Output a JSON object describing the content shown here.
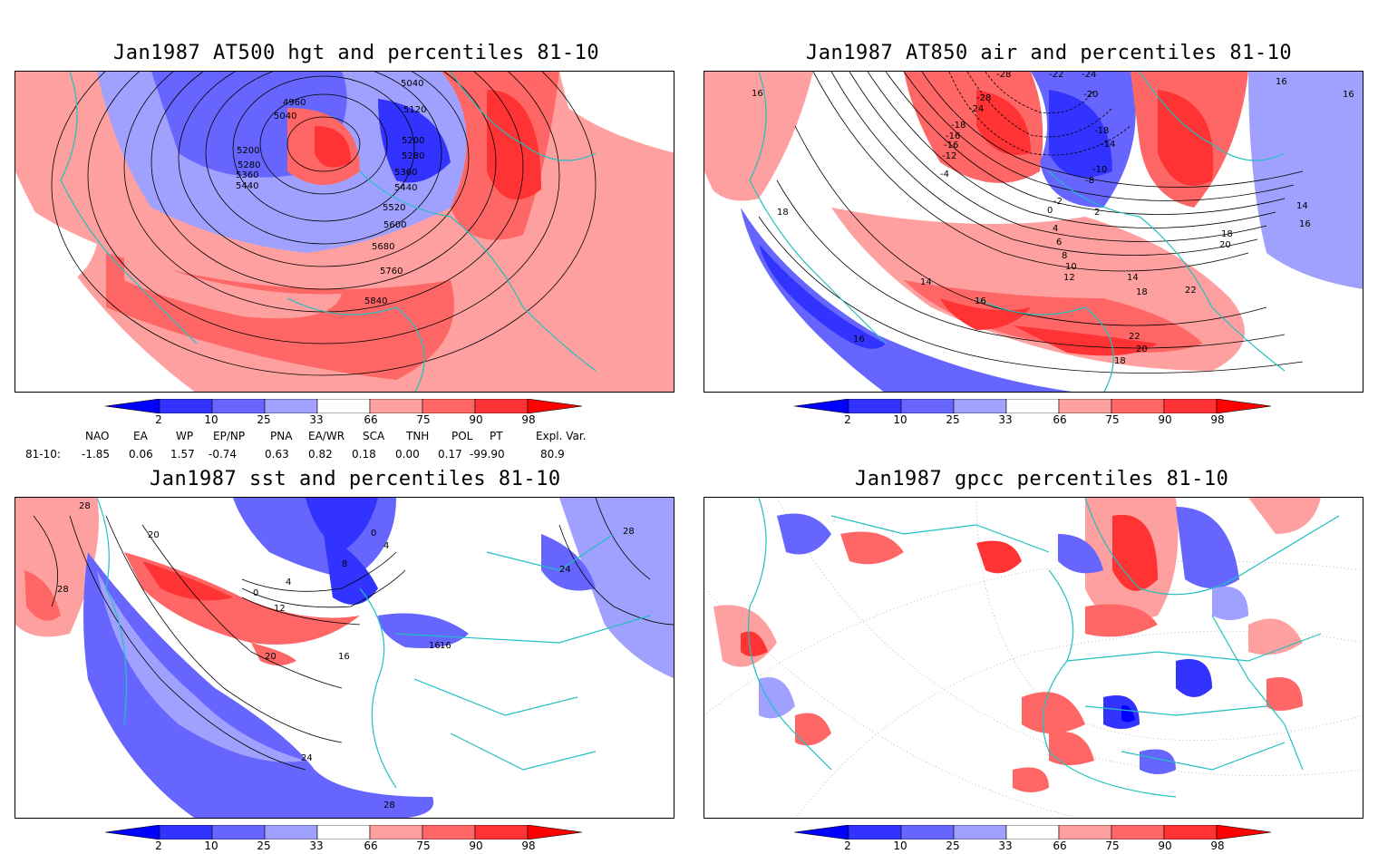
{
  "panels": [
    {
      "title": "Jan1987 AT500 hgt and percentiles 81-10",
      "contour_labels": [
        "4960",
        "5040",
        "5040",
        "5120",
        "5200",
        "5200",
        "5280",
        "5280",
        "5360",
        "5360",
        "5440",
        "5440",
        "5520",
        "5600",
        "5680",
        "5760",
        "5840"
      ]
    },
    {
      "title": "Jan1987 AT850 air and percentiles 81-10",
      "contour_labels": [
        "16",
        "16",
        "16",
        "18",
        "14",
        "16",
        "-28",
        "-22",
        "-24",
        "-20",
        "-28",
        "-24",
        "-18",
        "-16",
        "-18",
        "-14",
        "-16",
        "-12",
        "-10",
        "-8",
        "-4",
        "-2",
        "0",
        "2",
        "4",
        "6",
        "8",
        "10",
        "12",
        "14",
        "16",
        "18",
        "20",
        "22",
        "22",
        "20",
        "18",
        "14",
        "18",
        "16"
      ]
    },
    {
      "title": "Jan1987 sst and percentiles 81-10",
      "contour_labels": [
        "28",
        "20",
        "28",
        "0",
        "4",
        "8",
        "0",
        "4",
        "12",
        "20",
        "16",
        "24",
        "16",
        "16",
        "28",
        "24",
        "28"
      ]
    },
    {
      "title": "Jan1987 gpcc percentiles 81-10",
      "contour_labels": []
    }
  ],
  "colorbar": {
    "labels": [
      "2",
      "10",
      "25",
      "33",
      "66",
      "75",
      "90",
      "98"
    ],
    "colors": [
      "#0000ff",
      "#3333ff",
      "#6666ff",
      "#a0a0ff",
      "#ffffff",
      "#ffa0a0",
      "#ff6666",
      "#ff3333",
      "#ff0000"
    ]
  },
  "indices": {
    "header": [
      "NAO",
      "EA",
      "WP",
      "EP/NP",
      "PNA",
      "EA/WR",
      "SCA",
      "TNH",
      "POL",
      "PT",
      "Expl. Var."
    ],
    "row_label": "81-10:",
    "values": [
      "-1.85",
      "0.06",
      "1.57",
      "-0.74",
      "0.63",
      "0.82",
      "0.18",
      "0.00",
      "0.17",
      "-99.90",
      "80.9"
    ]
  },
  "coastline_color": "#20c0c0"
}
